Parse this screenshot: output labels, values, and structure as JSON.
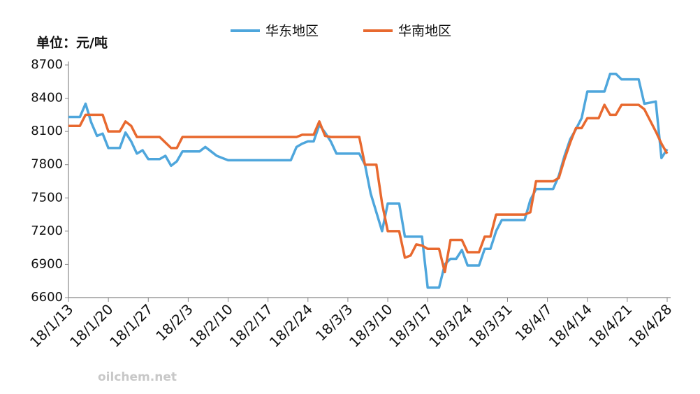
{
  "chart_data": {
    "type": "line",
    "unit_label": "单位：元/吨",
    "watermark": "oilchem.net",
    "categories": [
      "18/1/13",
      null,
      null,
      null,
      null,
      null,
      null,
      "18/1/20",
      null,
      null,
      null,
      null,
      null,
      null,
      "18/1/27",
      null,
      null,
      null,
      null,
      null,
      null,
      "18/2/3",
      null,
      null,
      null,
      null,
      null,
      null,
      "18/2/10",
      null,
      null,
      null,
      null,
      null,
      null,
      "18/2/17",
      null,
      null,
      null,
      null,
      null,
      null,
      "18/2/24",
      null,
      null,
      null,
      null,
      null,
      null,
      "18/3/3",
      null,
      null,
      null,
      null,
      null,
      null,
      "18/3/10",
      null,
      null,
      null,
      null,
      null,
      null,
      "18/3/17",
      null,
      null,
      null,
      null,
      null,
      null,
      "18/3/24",
      null,
      null,
      null,
      null,
      null,
      null,
      "18/3/31",
      null,
      null,
      null,
      null,
      null,
      null,
      "18/4/7",
      null,
      null,
      null,
      null,
      null,
      null,
      "18/4/14",
      null,
      null,
      null,
      null,
      null,
      null,
      "18/4/21",
      null,
      null,
      null,
      null,
      null,
      null,
      "18/4/28"
    ],
    "series": [
      {
        "name": "华东地区",
        "color": "#4ea6dc",
        "values": [
          8230,
          8230,
          8230,
          8350,
          8180,
          8060,
          8080,
          7950,
          7950,
          7950,
          8090,
          8010,
          7900,
          7930,
          7850,
          7850,
          7850,
          7880,
          7790,
          7830,
          7920,
          7920,
          7920,
          7920,
          7960,
          7920,
          7880,
          7860,
          7840,
          7840,
          7840,
          7840,
          7840,
          7840,
          7840,
          7840,
          7840,
          7840,
          7840,
          7840,
          7960,
          7990,
          8010,
          8010,
          8160,
          8090,
          8010,
          7900,
          7900,
          7900,
          7900,
          7900,
          7800,
          7540,
          7370,
          7200,
          7450,
          7450,
          7450,
          7150,
          7150,
          7150,
          7150,
          6690,
          6690,
          6690,
          6900,
          6950,
          6950,
          7030,
          6890,
          6890,
          6890,
          7040,
          7040,
          7200,
          7300,
          7300,
          7300,
          7300,
          7300,
          7480,
          7580,
          7580,
          7580,
          7580,
          7700,
          7880,
          8030,
          8120,
          8220,
          8460,
          8460,
          8460,
          8460,
          8620,
          8620,
          8570,
          8570,
          8570,
          8570,
          8350,
          8360,
          8370,
          7860,
          7940
        ]
      },
      {
        "name": "华南地区",
        "color": "#e8692f",
        "values": [
          8150,
          8150,
          8150,
          8250,
          8250,
          8250,
          8250,
          8100,
          8100,
          8100,
          8190,
          8150,
          8050,
          8050,
          8050,
          8050,
          8050,
          8000,
          7950,
          7950,
          8050,
          8050,
          8050,
          8050,
          8050,
          8050,
          8050,
          8050,
          8050,
          8050,
          8050,
          8050,
          8050,
          8050,
          8050,
          8050,
          8050,
          8050,
          8050,
          8050,
          8050,
          8070,
          8070,
          8070,
          8190,
          8060,
          8050,
          8050,
          8050,
          8050,
          8050,
          8050,
          7800,
          7800,
          7800,
          7450,
          7200,
          7200,
          7200,
          6960,
          6980,
          7080,
          7070,
          7040,
          7040,
          7040,
          6830,
          7120,
          7120,
          7120,
          7010,
          7010,
          7010,
          7150,
          7150,
          7350,
          7350,
          7350,
          7350,
          7350,
          7350,
          7370,
          7650,
          7650,
          7650,
          7650,
          7680,
          7850,
          8000,
          8130,
          8130,
          8220,
          8220,
          8220,
          8340,
          8250,
          8250,
          8340,
          8340,
          8340,
          8340,
          8300,
          8200,
          8100,
          7990,
          7900
        ]
      }
    ],
    "ylim": [
      6600,
      8700
    ],
    "yticks": [
      6600,
      6900,
      7200,
      7500,
      7800,
      8100,
      8400,
      8700
    ],
    "grid": false,
    "legend": "top"
  }
}
